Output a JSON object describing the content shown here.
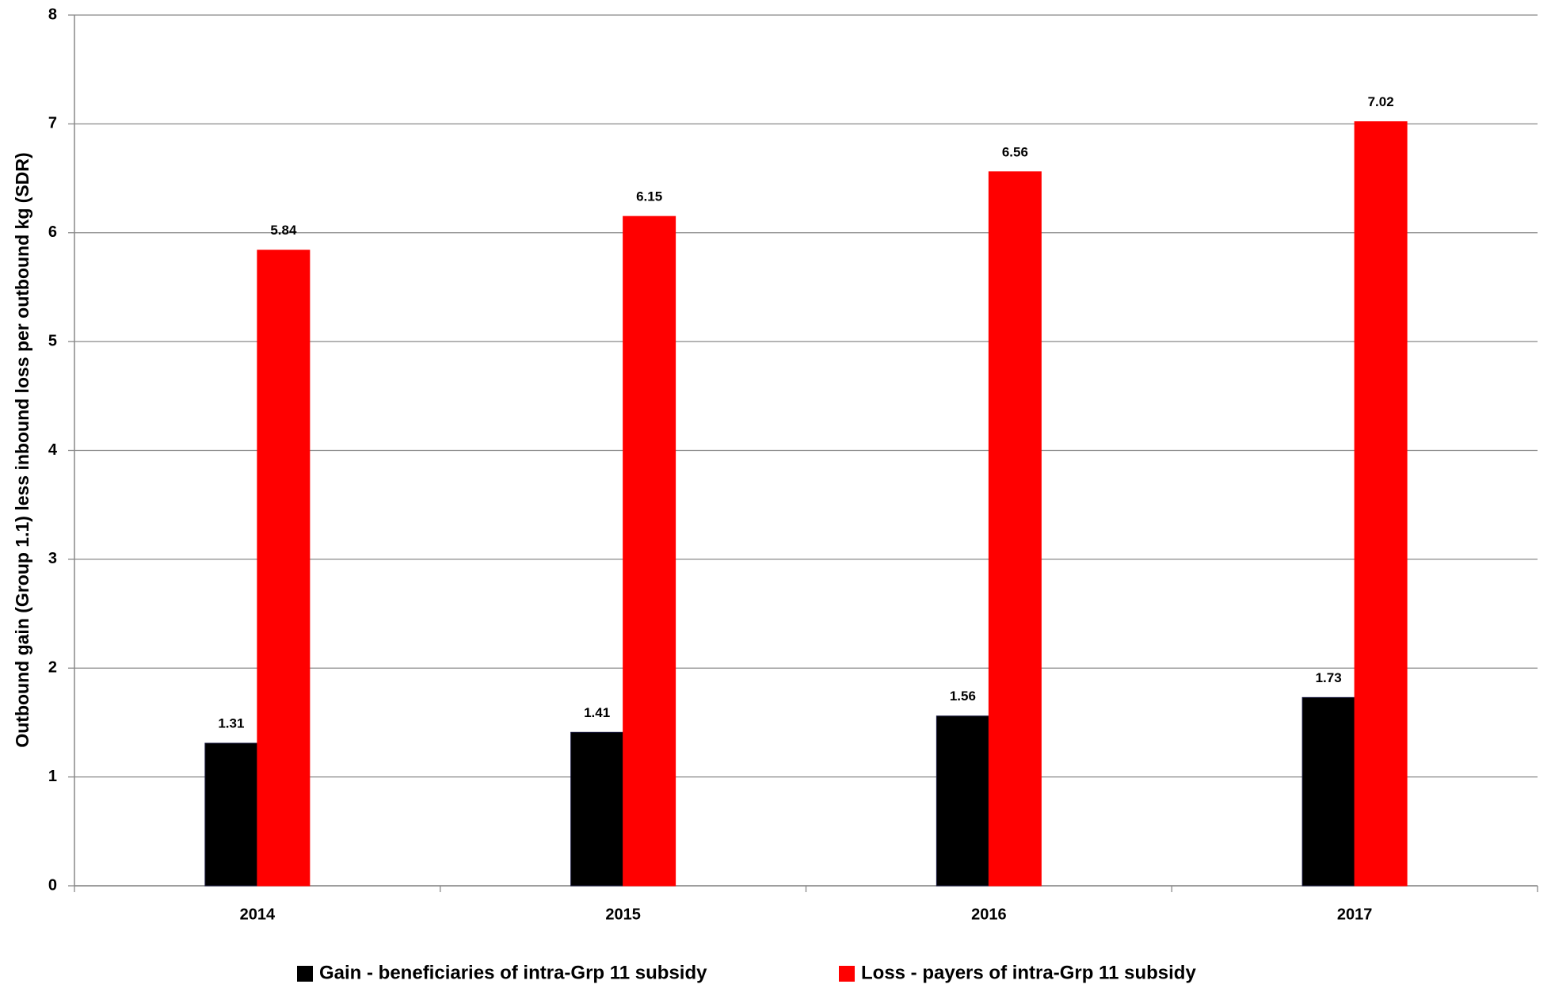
{
  "chart_data": {
    "type": "bar",
    "y_label": "Outbound gain (Group 1.1) less inbound loss per outbound kg (SDR)",
    "categories": [
      "2014",
      "2015",
      "2016",
      "2017"
    ],
    "series": [
      {
        "name": "Gain - beneficiaries of intra-Grp 11 subsidy",
        "color": "#000000",
        "values": [
          1.31,
          1.41,
          1.56,
          1.73
        ]
      },
      {
        "name": "Loss - payers of intra-Grp 11 subsidy",
        "color": "#ff0000",
        "values": [
          5.84,
          6.15,
          6.56,
          7.02
        ]
      }
    ],
    "ylim": [
      0,
      8
    ],
    "yticks": [
      0,
      1,
      2,
      3,
      4,
      5,
      6,
      7,
      8
    ],
    "grid": true,
    "legend": "bottom"
  }
}
